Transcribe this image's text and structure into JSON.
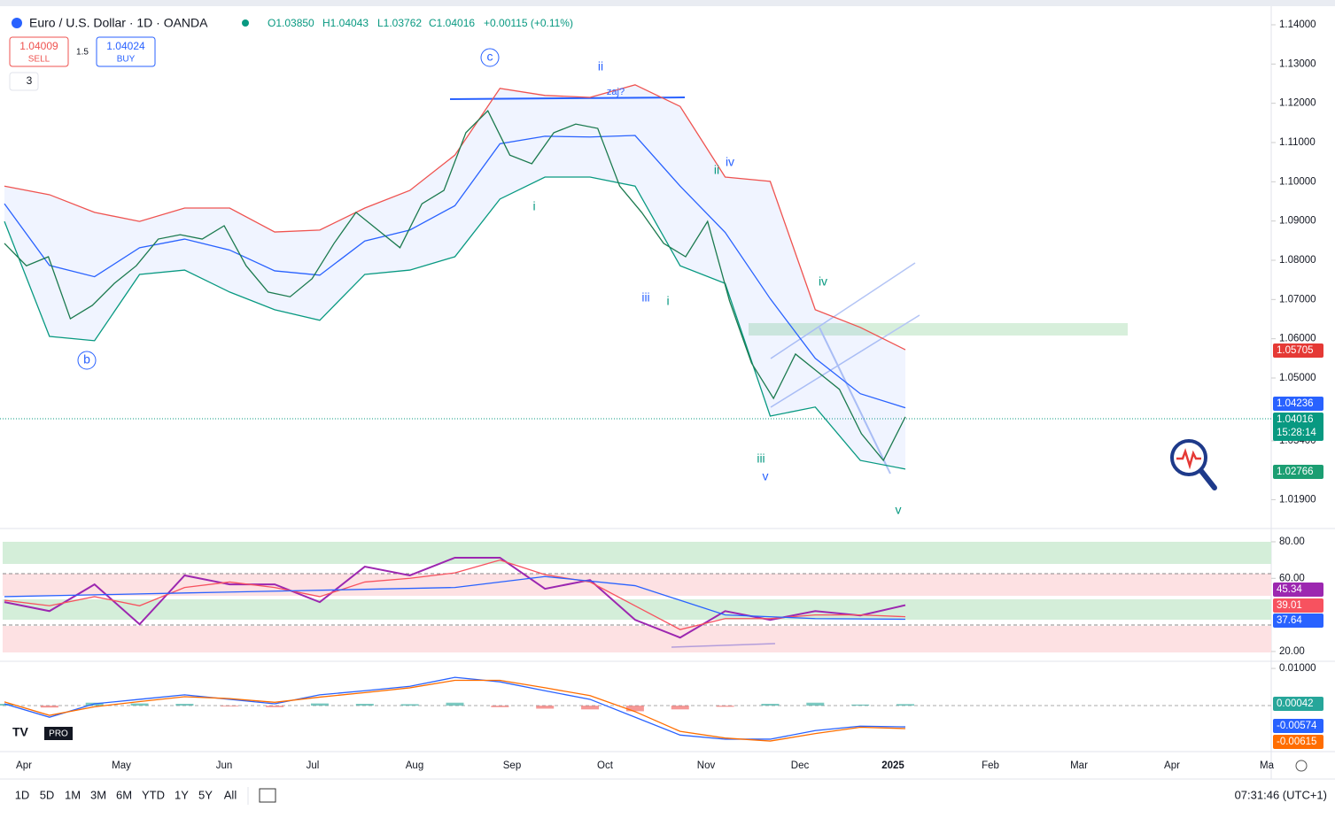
{
  "header": {
    "symbol": "Euro / U.S. Dollar · 1D · OANDA",
    "ohlc": [
      "O1.03850",
      "H1.04043",
      "L1.03762",
      "C1.04016",
      "+0.00115 (+0.11%)"
    ],
    "sell_price": "1.04009",
    "sell": "SELL",
    "spread": "1.5",
    "buy_price": "1.04024",
    "buy": "BUY",
    "collapse": "3"
  },
  "time_axis": [
    "Apr",
    "May",
    "Jun",
    "Jul",
    "Aug",
    "Sep",
    "Oct",
    "Nov",
    "Dec",
    "2025",
    "Feb",
    "Mar",
    "Apr",
    "Ma"
  ],
  "waves": [
    "c",
    "ii",
    "zaj?",
    "i",
    "b",
    "iii",
    "i",
    "ii",
    "iv",
    "iv",
    "iii",
    "v",
    "v"
  ],
  "price_labels": {
    "upper": "1.05705",
    "middle": "1.04236",
    "last": "1.04016",
    "countdown": "15:28:14",
    "lower": "1.02766",
    "rsi": "45.34",
    "rsi_ma": "39.01",
    "rsi_ma2": "37.64",
    "hist": "0.00042",
    "macd": "-0.00574",
    "signal": "-0.00615"
  },
  "toolbar": {
    "ranges": [
      "1D",
      "5D",
      "1M",
      "3M",
      "6M",
      "YTD",
      "1Y",
      "5Y",
      "All"
    ],
    "clock": "07:31:46 (UTC+1)"
  },
  "chart_data": [
    {
      "type": "line",
      "ylim": [
        1.0121,
        1.14406
      ],
      "yticks": [
        {
          "value": 1.14,
          "label": "1.14000"
        },
        {
          "value": 1.13,
          "label": "1.13000"
        },
        {
          "value": 1.12,
          "label": "1.12000"
        },
        {
          "value": 1.11,
          "label": "1.11000"
        },
        {
          "value": 1.1,
          "label": "1.10000"
        },
        {
          "value": 1.09,
          "label": "1.09000"
        },
        {
          "value": 1.08,
          "label": "1.08000"
        },
        {
          "value": 1.07,
          "label": "1.07000"
        },
        {
          "value": 1.06,
          "label": "1.06000"
        },
        {
          "value": 1.05,
          "label": "1.05000"
        },
        {
          "value": 1.034,
          "label": "1.03400"
        },
        {
          "value": 1.019,
          "label": "1.01900"
        }
      ],
      "series": [
        {
          "color": "#ef5350",
          "values": [
            1.0989,
            1.0967,
            1.0922,
            1.0899,
            1.0933,
            1.0933,
            1.0872,
            1.0877,
            1.0933,
            1.0978,
            1.1068,
            1.1238,
            1.122,
            1.1215,
            1.1247,
            1.1192,
            1.1012,
            1.1001,
            1.0674,
            1.0629,
            1.0572
          ]
        },
        {
          "color": "#2962ff",
          "values": [
            1.0944,
            1.0787,
            1.0758,
            1.0832,
            1.0854,
            1.0826,
            1.0773,
            1.0762,
            1.0849,
            1.0877,
            1.0939,
            1.1097,
            1.1116,
            1.1114,
            1.1118,
            1.0989,
            1.0871,
            1.0702,
            1.055,
            1.046,
            1.0424
          ]
        },
        {
          "color": "#089981",
          "values": [
            1.0899,
            1.0606,
            1.0595,
            1.0764,
            1.0775,
            1.0719,
            1.0674,
            1.0647,
            1.0764,
            1.0775,
            1.0809,
            1.0956,
            1.1012,
            1.1012,
            1.0989,
            1.0786,
            1.0741,
            1.0403,
            1.0426,
            1.029,
            1.0268
          ]
        },
        {
          "color": "#1b7a4f",
          "values": [
            1.0843,
            1.0786,
            1.0809,
            1.0651,
            1.0685,
            1.0741,
            1.0786,
            1.0854,
            1.0865,
            1.0854,
            1.0888,
            1.0786,
            1.0719,
            1.0707,
            1.0753,
            1.0843,
            1.0922,
            1.0877,
            1.0832,
            1.0944,
            1.0978,
            1.1125,
            1.1181,
            1.1068,
            1.1046,
            1.1125,
            1.1147,
            1.1136,
            1.0989,
            1.0922,
            1.0843,
            1.0809,
            1.0899,
            1.0696,
            1.0538,
            1.0448,
            1.0561,
            1.0516,
            1.0471,
            1.0358,
            1.029,
            1.0401
          ]
        }
      ]
    },
    {
      "type": "line",
      "ylim": [
        15.6,
        85.8
      ],
      "yticks": [
        {
          "value": 80,
          "label": "80.00"
        },
        {
          "value": 60,
          "label": "60.00"
        },
        {
          "value": 20,
          "label": "20.00"
        }
      ],
      "series": [
        {
          "color": "#9c27b0",
          "values": [
            47,
            42.1,
            56.7,
            34.9,
            61.6,
            56.7,
            56.7,
            47,
            66.4,
            61.6,
            71.3,
            71.3,
            54.3,
            59.1,
            37.3,
            27.6,
            42.1,
            37.3,
            42.1,
            39.7,
            45.34
          ]
        },
        {
          "color": "#f7525f",
          "values": [
            48,
            45,
            50,
            45,
            55,
            58,
            55,
            50,
            58,
            60,
            63,
            70,
            62,
            58,
            45,
            32,
            38,
            38,
            40,
            40,
            39.01
          ]
        },
        {
          "color": "#2962ff",
          "values": [
            50,
            51,
            52,
            53,
            54,
            55,
            61,
            56,
            40,
            38,
            37.64
          ]
        }
      ]
    },
    {
      "type": "macd",
      "ylim": [
        -0.0121,
        0.0112
      ],
      "yticks": [
        {
          "value": 0.01,
          "label": "0.01000"
        }
      ],
      "histogram": [
        0.0005,
        -0.0005,
        0.0008,
        0.0006,
        0.0005,
        -0.0002,
        -0.0004,
        0.0006,
        0.0005,
        0.0004,
        0.0008,
        -0.0004,
        -0.0008,
        -0.001,
        -0.0015,
        -0.001,
        -0.0003,
        0.0005,
        0.0008,
        0.0003,
        0.00042
      ],
      "series": [
        {
          "color": "#2962ff",
          "values": [
            0.0005,
            -0.0031,
            0.0005,
            0.0017,
            0.0029,
            0.0017,
            0.0005,
            0.0029,
            0.004,
            0.0052,
            0.0076,
            0.0064,
            0.004,
            0.0017,
            -0.0031,
            -0.0079,
            -0.009,
            -0.009,
            -0.0067,
            -0.0055,
            -0.0057
          ]
        },
        {
          "color": "#ff6d00",
          "values": [
            0.001,
            -0.0026,
            -0.0003,
            0.0011,
            0.0024,
            0.0019,
            0.0009,
            0.0023,
            0.0035,
            0.0048,
            0.0068,
            0.0068,
            0.0048,
            0.0027,
            -0.0016,
            -0.0069,
            -0.0087,
            -0.0095,
            -0.0075,
            -0.0058,
            -0.00615
          ]
        }
      ]
    }
  ]
}
